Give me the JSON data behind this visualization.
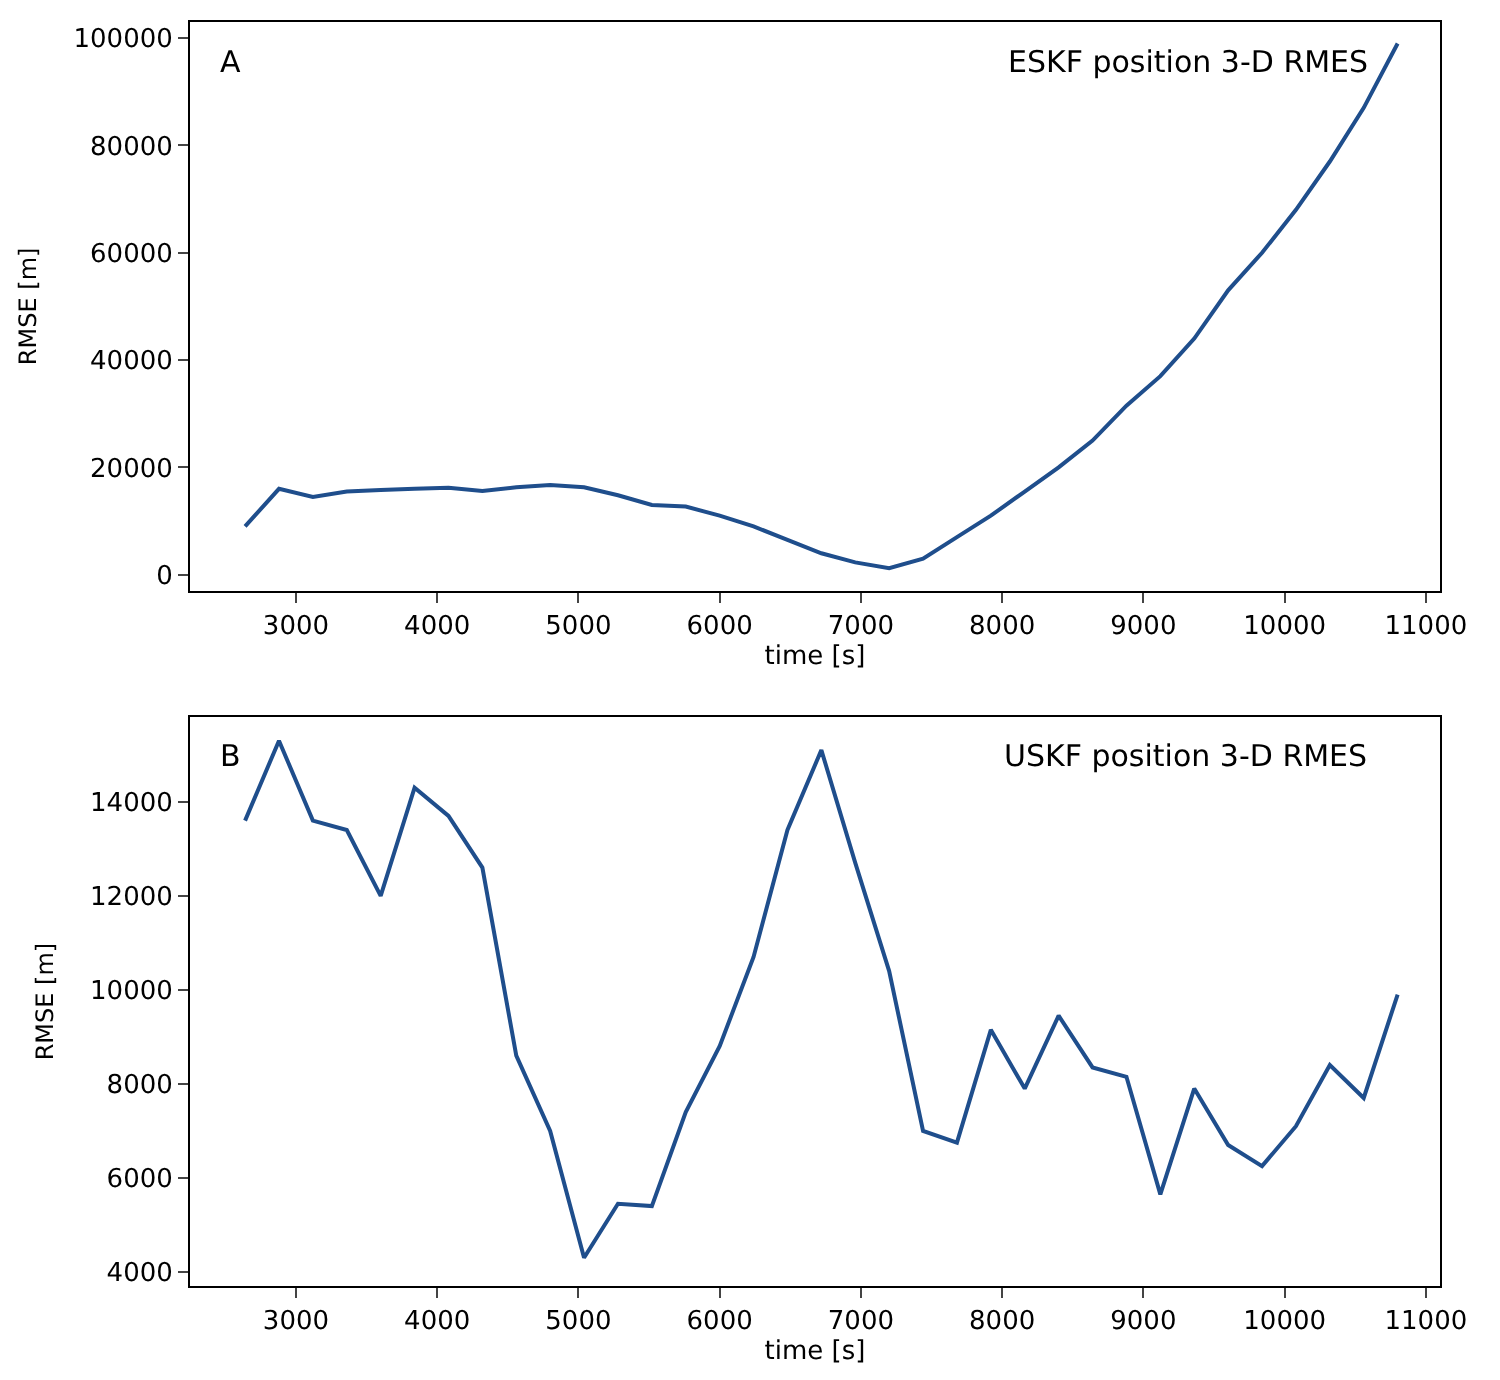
{
  "chart_data": [
    {
      "type": "line",
      "xlabel": "time [s]",
      "ylabel": "RMSE [m]",
      "annotations": [
        "A",
        "ESKF position 3-D RMES"
      ],
      "x": [
        2640,
        2880,
        3120,
        3360,
        3600,
        3840,
        4080,
        4320,
        4560,
        4800,
        5040,
        5280,
        5520,
        5760,
        6000,
        6240,
        6480,
        6720,
        6960,
        7200,
        7440,
        7680,
        7920,
        8160,
        8400,
        8640,
        8880,
        9120,
        9360,
        9600,
        9840,
        10080,
        10320,
        10560,
        10800
      ],
      "series": [
        {
          "color": "#1f4e8c",
          "values": [
            9000,
            16000,
            14500,
            15500,
            15800,
            16000,
            16200,
            15600,
            16300,
            16700,
            16300,
            14800,
            13000,
            12700,
            11000,
            9000,
            6500,
            4000,
            2300,
            1200,
            3000,
            7000,
            11000,
            15500,
            20000,
            25000,
            31500,
            37000,
            44000,
            53000,
            60000,
            68000,
            77000,
            87000,
            99000
          ]
        }
      ],
      "xlim": [
        2250,
        11100
      ],
      "xticks": [
        3000,
        4000,
        5000,
        6000,
        7000,
        8000,
        9000,
        10000,
        11000
      ],
      "ylim": [
        -3000,
        103000
      ],
      "yticks": [
        0,
        20000,
        40000,
        60000,
        80000,
        100000
      ],
      "line_style": "solid",
      "marker": "none"
    },
    {
      "type": "line",
      "xlabel": "time [s]",
      "ylabel": "RMSE [m]",
      "annotations": [
        "B",
        "USKF position 3-D RMES"
      ],
      "x": [
        2640,
        2880,
        3120,
        3360,
        3600,
        3840,
        4080,
        4320,
        4560,
        4800,
        5040,
        5280,
        5520,
        5760,
        6000,
        6240,
        6480,
        6720,
        6960,
        7200,
        7440,
        7680,
        7920,
        8160,
        8400,
        8640,
        8880,
        9120,
        9360,
        9600,
        9840,
        10080,
        10320,
        10560,
        10800
      ],
      "series": [
        {
          "color": "#1f4e8c",
          "values": [
            13600,
            15300,
            13600,
            13400,
            12000,
            14300,
            13700,
            12600,
            8600,
            7000,
            4300,
            5450,
            5400,
            7400,
            8800,
            10700,
            13400,
            15100,
            12700,
            10400,
            7000,
            6750,
            9150,
            7900,
            9450,
            8350,
            8150,
            5650,
            7900,
            6700,
            6250,
            7100,
            8400,
            7700,
            9900
          ]
        }
      ],
      "xlim": [
        2250,
        11100
      ],
      "xticks": [
        3000,
        4000,
        5000,
        6000,
        7000,
        8000,
        9000,
        10000,
        11000
      ],
      "ylim": [
        3700,
        15800
      ],
      "yticks": [
        4000,
        6000,
        8000,
        10000,
        12000,
        14000
      ],
      "line_style": "solid",
      "marker": "none"
    }
  ]
}
